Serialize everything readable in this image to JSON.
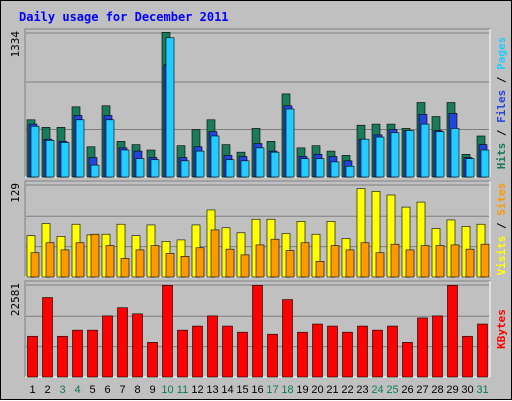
{
  "title": "Daily usage for December 2011",
  "colors": {
    "background": "#c0c0c0",
    "plot_background": "#c0c0c0",
    "hits": "#1a7a5a",
    "files": "#2244dd",
    "pages": "#22ccff",
    "visits": "#ffff00",
    "sites": "#ff9900",
    "kbytes": "#ff0000",
    "weekday_label": "#000000",
    "weekend_label": "#0b7a55",
    "title": "#0000ff"
  },
  "chart_data": [
    {
      "type": "bar",
      "panel": "hits-files-pages",
      "y_max_label": "1334",
      "ylim": [
        0,
        1334
      ],
      "grid": true,
      "side_labels": [
        {
          "text": "Hits",
          "color": "#1a7a5a"
        },
        {
          "text": " / ",
          "color": "#000000"
        },
        {
          "text": "Files",
          "color": "#2244dd"
        },
        {
          "text": " / ",
          "color": "#000000"
        },
        {
          "text": "Pages",
          "color": "#22ccff"
        }
      ],
      "categories": [
        "1",
        "2",
        "3",
        "4",
        "5",
        "6",
        "7",
        "8",
        "9",
        "10",
        "11",
        "12",
        "13",
        "14",
        "15",
        "16",
        "17",
        "18",
        "19",
        "20",
        "21",
        "22",
        "23",
        "24",
        "25",
        "26",
        "27",
        "28",
        "29",
        "30",
        "31"
      ],
      "series": [
        {
          "name": "Hits",
          "values": [
            530,
            460,
            460,
            650,
            280,
            660,
            330,
            300,
            250,
            1340,
            290,
            440,
            530,
            300,
            230,
            450,
            330,
            770,
            270,
            290,
            240,
            200,
            480,
            490,
            490,
            450,
            690,
            560,
            690,
            210,
            380
          ]
        },
        {
          "name": "Files",
          "values": [
            490,
            350,
            330,
            570,
            180,
            570,
            270,
            240,
            180,
            1040,
            180,
            280,
            420,
            200,
            190,
            310,
            240,
            660,
            190,
            210,
            190,
            150,
            350,
            390,
            440,
            430,
            580,
            430,
            590,
            180,
            300
          ]
        },
        {
          "name": "Pages",
          "values": [
            470,
            340,
            320,
            530,
            110,
            530,
            250,
            170,
            160,
            1290,
            150,
            240,
            380,
            160,
            150,
            270,
            230,
            630,
            170,
            170,
            140,
            100,
            350,
            370,
            410,
            430,
            490,
            420,
            450,
            170,
            250
          ]
        }
      ]
    },
    {
      "type": "bar",
      "panel": "visits-sites",
      "y_max_label": "129",
      "ylim": [
        0,
        129
      ],
      "grid": true,
      "side_labels": [
        {
          "text": "Visits",
          "color": "#ffff00"
        },
        {
          "text": " / ",
          "color": "#000000"
        },
        {
          "text": "Sites",
          "color": "#ff9900"
        }
      ],
      "categories": [
        "1",
        "2",
        "3",
        "4",
        "5",
        "6",
        "7",
        "8",
        "9",
        "10",
        "11",
        "12",
        "13",
        "14",
        "15",
        "16",
        "17",
        "18",
        "19",
        "20",
        "21",
        "22",
        "23",
        "24",
        "25",
        "26",
        "27",
        "28",
        "29",
        "30",
        "31"
      ],
      "series": [
        {
          "name": "Visits",
          "values": [
            58,
            75,
            57,
            74,
            59,
            60,
            74,
            58,
            73,
            50,
            52,
            73,
            94,
            69,
            62,
            81,
            81,
            61,
            78,
            60,
            78,
            54,
            124,
            120,
            115,
            98,
            105,
            68,
            80,
            71,
            74
          ]
        },
        {
          "name": "Sites",
          "values": [
            34,
            48,
            38,
            48,
            60,
            44,
            26,
            38,
            44,
            33,
            29,
            41,
            66,
            39,
            31,
            45,
            53,
            37,
            48,
            22,
            44,
            38,
            48,
            34,
            46,
            38,
            44,
            44,
            45,
            39,
            46
          ]
        }
      ]
    },
    {
      "type": "bar",
      "panel": "kbytes",
      "y_max_label": "22581",
      "ylim": [
        0,
        22581
      ],
      "grid": true,
      "side_labels": [
        {
          "text": "KBytes",
          "color": "#ff0000"
        }
      ],
      "categories": [
        "1",
        "2",
        "3",
        "4",
        "5",
        "6",
        "7",
        "8",
        "9",
        "10",
        "11",
        "12",
        "13",
        "14",
        "15",
        "16",
        "17",
        "18",
        "19",
        "20",
        "21",
        "22",
        "23",
        "24",
        "25",
        "26",
        "27",
        "28",
        "29",
        "30",
        "31"
      ],
      "series": [
        {
          "name": "KBytes",
          "values": [
            10000,
            19500,
            10000,
            11500,
            11500,
            15000,
            17000,
            15500,
            8500,
            22500,
            11500,
            12500,
            15000,
            12500,
            11000,
            22500,
            10500,
            19000,
            11000,
            13000,
            12500,
            11000,
            12500,
            11500,
            12500,
            8500,
            14500,
            15000,
            22500,
            10000,
            13000
          ]
        }
      ]
    }
  ],
  "x_axis": {
    "days": [
      "1",
      "2",
      "3",
      "4",
      "5",
      "6",
      "7",
      "8",
      "9",
      "10",
      "11",
      "12",
      "13",
      "14",
      "15",
      "16",
      "17",
      "18",
      "19",
      "20",
      "21",
      "22",
      "23",
      "24",
      "25",
      "26",
      "27",
      "28",
      "29",
      "30",
      "31"
    ],
    "weekend_days": [
      "3",
      "4",
      "10",
      "11",
      "17",
      "18",
      "24",
      "25",
      "31"
    ]
  }
}
